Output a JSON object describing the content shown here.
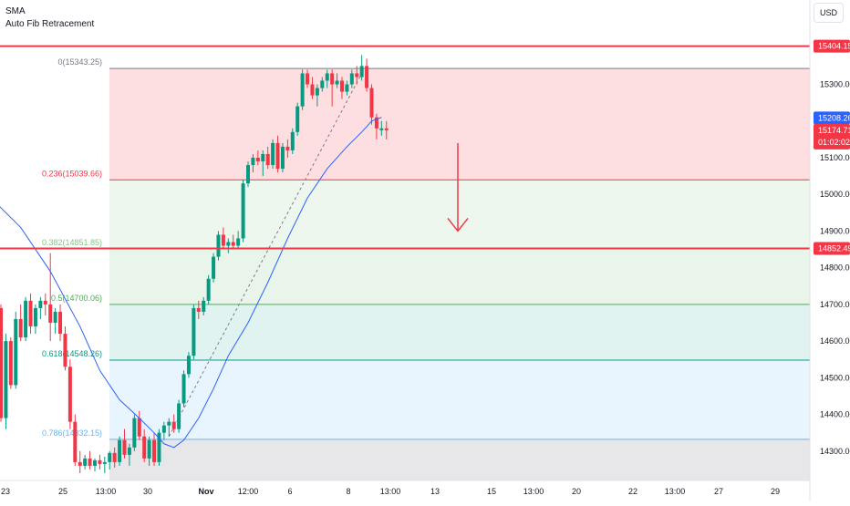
{
  "legend": {
    "indicator_1": "SMA",
    "indicator_2": "Auto Fib Retracement"
  },
  "currency_button": "USD",
  "chart_data": {
    "type": "candlestick",
    "y_axis": {
      "range": [
        14220,
        15530
      ],
      "ticks": [
        15300,
        15200,
        15100,
        15000,
        14900,
        14800,
        14700,
        14600,
        14500,
        14400,
        14300
      ],
      "tick_labels": [
        "15300.00",
        "15200.00",
        "15100.00",
        "15000.00",
        "14900.00",
        "14800.00",
        "14700.00",
        "14600.00",
        "14500.00",
        "14400.00",
        "14300.00"
      ]
    },
    "x_axis": {
      "tick_labels": [
        "23",
        "25",
        "13:00",
        "30",
        "Nov",
        "12:00",
        "6",
        "8",
        "13:00",
        "13",
        "15",
        "13:00",
        "20",
        "22",
        "13:00",
        "27",
        "29"
      ]
    },
    "price_labels": [
      {
        "value": 15404.15,
        "text": "15404.15",
        "color": "#f23645"
      },
      {
        "value": 15208.26,
        "text": "15208.26",
        "color": "#2962ff"
      },
      {
        "value": 15174.71,
        "text": "15174.71",
        "sub": "01:02:02",
        "color": "#f23645"
      },
      {
        "value": 14852.49,
        "text": "14852.49",
        "color": "#f23645"
      }
    ],
    "horizontal_lines": [
      {
        "value": 15404.15,
        "color": "#f23645"
      },
      {
        "value": 14852.49,
        "color": "#f23645"
      }
    ],
    "fib_levels": [
      {
        "ratio": "0",
        "value": 15343.25,
        "label": "0(15343.25)",
        "color": "#787b86"
      },
      {
        "ratio": "0.236",
        "value": 15039.66,
        "label": "0.236(15039.66)",
        "color": "#f23645"
      },
      {
        "ratio": "0.382",
        "value": 14851.85,
        "label": "0.382(14851.85)",
        "color": "#81c784"
      },
      {
        "ratio": "0.5",
        "value": 14700.06,
        "label": "0.5(14700.06)",
        "color": "#4caf50"
      },
      {
        "ratio": "0.618",
        "value": 14548.26,
        "label": "0.618(14548.26)",
        "color": "#089981"
      },
      {
        "ratio": "0.786",
        "value": 14332.15,
        "label": "0.786(14332.15)",
        "color": "#64b5f6"
      }
    ],
    "fib_zones": [
      {
        "from": 15343.25,
        "to": 15039.66,
        "color": "#f23645",
        "opacity": 0.16
      },
      {
        "from": 15039.66,
        "to": 14851.85,
        "color": "#81c784",
        "opacity": 0.14
      },
      {
        "from": 14851.85,
        "to": 14700.06,
        "color": "#4caf50",
        "opacity": 0.12
      },
      {
        "from": 14700.06,
        "to": 14548.26,
        "color": "#089981",
        "opacity": 0.12
      },
      {
        "from": 14548.26,
        "to": 14332.15,
        "color": "#64b5f6",
        "opacity": 0.14
      },
      {
        "from": 14332.15,
        "to": 14220,
        "color": "#787b86",
        "opacity": 0.18
      }
    ],
    "candles": [
      {
        "o": 14690,
        "h": 14700,
        "l": 14380,
        "c": 14390
      },
      {
        "o": 14390,
        "h": 14620,
        "l": 14360,
        "c": 14600
      },
      {
        "o": 14600,
        "h": 14610,
        "l": 14470,
        "c": 14480
      },
      {
        "o": 14480,
        "h": 14680,
        "l": 14470,
        "c": 14660
      },
      {
        "o": 14660,
        "h": 14700,
        "l": 14600,
        "c": 14610
      },
      {
        "o": 14610,
        "h": 14720,
        "l": 14600,
        "c": 14710
      },
      {
        "o": 14710,
        "h": 14730,
        "l": 14620,
        "c": 14640
      },
      {
        "o": 14640,
        "h": 14700,
        "l": 14620,
        "c": 14690
      },
      {
        "o": 14690,
        "h": 14720,
        "l": 14660,
        "c": 14710
      },
      {
        "o": 14710,
        "h": 14730,
        "l": 14670,
        "c": 14700
      },
      {
        "o": 14700,
        "h": 14840,
        "l": 14600,
        "c": 14650
      },
      {
        "o": 14650,
        "h": 14690,
        "l": 14620,
        "c": 14680
      },
      {
        "o": 14680,
        "h": 14700,
        "l": 14600,
        "c": 14620
      },
      {
        "o": 14620,
        "h": 14640,
        "l": 14520,
        "c": 14530
      },
      {
        "o": 14530,
        "h": 14550,
        "l": 14360,
        "c": 14380
      },
      {
        "o": 14380,
        "h": 14400,
        "l": 14260,
        "c": 14270
      },
      {
        "o": 14270,
        "h": 14300,
        "l": 14240,
        "c": 14260
      },
      {
        "o": 14260,
        "h": 14290,
        "l": 14250,
        "c": 14280
      },
      {
        "o": 14280,
        "h": 14300,
        "l": 14250,
        "c": 14260
      },
      {
        "o": 14260,
        "h": 14280,
        "l": 14245,
        "c": 14275
      },
      {
        "o": 14275,
        "h": 14290,
        "l": 14250,
        "c": 14265
      },
      {
        "o": 14265,
        "h": 14285,
        "l": 14240,
        "c": 14270
      },
      {
        "o": 14270,
        "h": 14300,
        "l": 14250,
        "c": 14295
      },
      {
        "o": 14295,
        "h": 14310,
        "l": 14255,
        "c": 14270
      },
      {
        "o": 14270,
        "h": 14340,
        "l": 14260,
        "c": 14330
      },
      {
        "o": 14330,
        "h": 14360,
        "l": 14280,
        "c": 14290
      },
      {
        "o": 14290,
        "h": 14320,
        "l": 14260,
        "c": 14310
      },
      {
        "o": 14310,
        "h": 14400,
        "l": 14300,
        "c": 14390
      },
      {
        "o": 14390,
        "h": 14410,
        "l": 14330,
        "c": 14340
      },
      {
        "o": 14340,
        "h": 14360,
        "l": 14270,
        "c": 14280
      },
      {
        "o": 14280,
        "h": 14340,
        "l": 14260,
        "c": 14330
      },
      {
        "o": 14330,
        "h": 14350,
        "l": 14260,
        "c": 14270
      },
      {
        "o": 14270,
        "h": 14360,
        "l": 14260,
        "c": 14350
      },
      {
        "o": 14350,
        "h": 14380,
        "l": 14330,
        "c": 14370
      },
      {
        "o": 14370,
        "h": 14390,
        "l": 14340,
        "c": 14380
      },
      {
        "o": 14380,
        "h": 14400,
        "l": 14350,
        "c": 14360
      },
      {
        "o": 14360,
        "h": 14440,
        "l": 14350,
        "c": 14430
      },
      {
        "o": 14430,
        "h": 14520,
        "l": 14420,
        "c": 14510
      },
      {
        "o": 14510,
        "h": 14570,
        "l": 14500,
        "c": 14560
      },
      {
        "o": 14560,
        "h": 14700,
        "l": 14550,
        "c": 14690
      },
      {
        "o": 14690,
        "h": 14710,
        "l": 14660,
        "c": 14680
      },
      {
        "o": 14680,
        "h": 14720,
        "l": 14670,
        "c": 14710
      },
      {
        "o": 14710,
        "h": 14780,
        "l": 14700,
        "c": 14770
      },
      {
        "o": 14770,
        "h": 14840,
        "l": 14760,
        "c": 14830
      },
      {
        "o": 14830,
        "h": 14900,
        "l": 14820,
        "c": 14890
      },
      {
        "o": 14890,
        "h": 14910,
        "l": 14850,
        "c": 14860
      },
      {
        "o": 14860,
        "h": 14880,
        "l": 14840,
        "c": 14870
      },
      {
        "o": 14870,
        "h": 14890,
        "l": 14850,
        "c": 14860
      },
      {
        "o": 14860,
        "h": 14900,
        "l": 14850,
        "c": 14880
      },
      {
        "o": 14880,
        "h": 15040,
        "l": 14870,
        "c": 15030
      },
      {
        "o": 15030,
        "h": 15090,
        "l": 15020,
        "c": 15080
      },
      {
        "o": 15080,
        "h": 15110,
        "l": 15060,
        "c": 15100
      },
      {
        "o": 15100,
        "h": 15120,
        "l": 15080,
        "c": 15090
      },
      {
        "o": 15090,
        "h": 15120,
        "l": 15050,
        "c": 15110
      },
      {
        "o": 15110,
        "h": 15130,
        "l": 15070,
        "c": 15080
      },
      {
        "o": 15080,
        "h": 15150,
        "l": 15070,
        "c": 15140
      },
      {
        "o": 15140,
        "h": 15160,
        "l": 15060,
        "c": 15070
      },
      {
        "o": 15070,
        "h": 15140,
        "l": 15060,
        "c": 15130
      },
      {
        "o": 15130,
        "h": 15150,
        "l": 15100,
        "c": 15120
      },
      {
        "o": 15120,
        "h": 15180,
        "l": 15110,
        "c": 15170
      },
      {
        "o": 15170,
        "h": 15250,
        "l": 15160,
        "c": 15240
      },
      {
        "o": 15240,
        "h": 15340,
        "l": 15230,
        "c": 15330
      },
      {
        "o": 15330,
        "h": 15340,
        "l": 15290,
        "c": 15300
      },
      {
        "o": 15300,
        "h": 15320,
        "l": 15260,
        "c": 15270
      },
      {
        "o": 15270,
        "h": 15300,
        "l": 15240,
        "c": 15290
      },
      {
        "o": 15290,
        "h": 15320,
        "l": 15280,
        "c": 15310
      },
      {
        "o": 15310,
        "h": 15340,
        "l": 15290,
        "c": 15330
      },
      {
        "o": 15330,
        "h": 15340,
        "l": 15240,
        "c": 15300
      },
      {
        "o": 15300,
        "h": 15330,
        "l": 15290,
        "c": 15310
      },
      {
        "o": 15310,
        "h": 15320,
        "l": 15260,
        "c": 15280
      },
      {
        "o": 15280,
        "h": 15310,
        "l": 15270,
        "c": 15300
      },
      {
        "o": 15300,
        "h": 15340,
        "l": 15290,
        "c": 15330
      },
      {
        "o": 15330,
        "h": 15350,
        "l": 15300,
        "c": 15320
      },
      {
        "o": 15320,
        "h": 15380,
        "l": 15310,
        "c": 15350
      },
      {
        "o": 15350,
        "h": 15370,
        "l": 15280,
        "c": 15290
      },
      {
        "o": 15290,
        "h": 15300,
        "l": 15190,
        "c": 15210
      },
      {
        "o": 15210,
        "h": 15220,
        "l": 15150,
        "c": 15180
      },
      {
        "o": 15175,
        "h": 15200,
        "l": 15160,
        "c": 15180
      },
      {
        "o": 15180,
        "h": 15200,
        "l": 15150,
        "c": 15175
      }
    ],
    "sma": [
      {
        "i": -2,
        "v": 14990
      },
      {
        "i": 4,
        "v": 14910
      },
      {
        "i": 10,
        "v": 14790
      },
      {
        "i": 16,
        "v": 14640
      },
      {
        "i": 20,
        "v": 14520
      },
      {
        "i": 24,
        "v": 14440
      },
      {
        "i": 28,
        "v": 14390
      },
      {
        "i": 31,
        "v": 14350
      },
      {
        "i": 33,
        "v": 14320
      },
      {
        "i": 35,
        "v": 14310
      },
      {
        "i": 37,
        "v": 14330
      },
      {
        "i": 40,
        "v": 14390
      },
      {
        "i": 43,
        "v": 14470
      },
      {
        "i": 46,
        "v": 14560
      },
      {
        "i": 50,
        "v": 14650
      },
      {
        "i": 54,
        "v": 14760
      },
      {
        "i": 58,
        "v": 14880
      },
      {
        "i": 62,
        "v": 14990
      },
      {
        "i": 66,
        "v": 15070
      },
      {
        "i": 70,
        "v": 15130
      },
      {
        "i": 73,
        "v": 15170
      },
      {
        "i": 75,
        "v": 15200
      },
      {
        "i": 77,
        "v": 15210
      }
    ],
    "trend_line": {
      "from": {
        "i": 34,
        "v": 14340
      },
      "to": {
        "i": 73,
        "v": 15330
      }
    },
    "arrow": {
      "from_value": 15140,
      "to_value": 14900
    }
  }
}
